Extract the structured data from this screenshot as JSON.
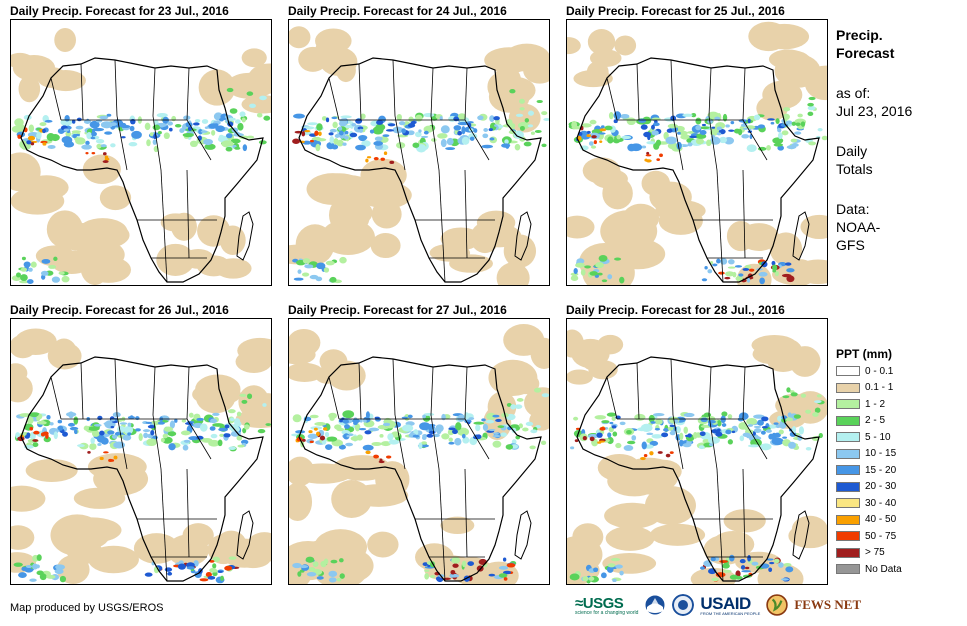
{
  "panels": [
    {
      "title": "Daily Precip. Forecast for 23 Jul., 2016"
    },
    {
      "title": "Daily Precip. Forecast for 24 Jul., 2016"
    },
    {
      "title": "Daily Precip. Forecast for 25 Jul., 2016"
    },
    {
      "title": "Daily Precip. Forecast for 26 Jul., 2016"
    },
    {
      "title": "Daily Precip. Forecast for 27 Jul., 2016"
    },
    {
      "title": "Daily Precip. Forecast for 28 Jul., 2016"
    }
  ],
  "side": {
    "title_line1": "Precip.",
    "title_line2": "Forecast",
    "asof_line1": "as of:",
    "asof_line2": "Jul 23, 2016",
    "totals_line1": "Daily",
    "totals_line2": "Totals",
    "data_line1": "Data:",
    "data_line2": "NOAA-",
    "data_line3": "GFS"
  },
  "legend": {
    "title": "PPT (mm)",
    "items": [
      {
        "label": "0 - 0.1",
        "color": "#ffffff"
      },
      {
        "label": "0.1 - 1",
        "color": "#e8d2aa"
      },
      {
        "label": "1 - 2",
        "color": "#b4f0a0"
      },
      {
        "label": "2 - 5",
        "color": "#5ad25a"
      },
      {
        "label": "5 - 10",
        "color": "#b4f0f0"
      },
      {
        "label": "10 - 15",
        "color": "#8cc8f0"
      },
      {
        "label": "15 - 20",
        "color": "#4696e6"
      },
      {
        "label": "20 - 30",
        "color": "#1e5ad2"
      },
      {
        "label": "30 - 40",
        "color": "#fae682"
      },
      {
        "label": "40 - 50",
        "color": "#faa000"
      },
      {
        "label": "50 - 75",
        "color": "#f03c00"
      },
      {
        "label": "> 75",
        "color": "#a01e1e"
      },
      {
        "label": "No Data",
        "color": "#969696"
      }
    ]
  },
  "footer": {
    "credit": "Map produced by USGS/EROS",
    "logo_usgs": "≈USGS",
    "logo_usgs_tag": "science for a changing world",
    "logo_usaid": "USAID",
    "logo_usaid_tag": "FROM THE AMERICAN PEOPLE",
    "logo_fews": "FEWS NET"
  }
}
